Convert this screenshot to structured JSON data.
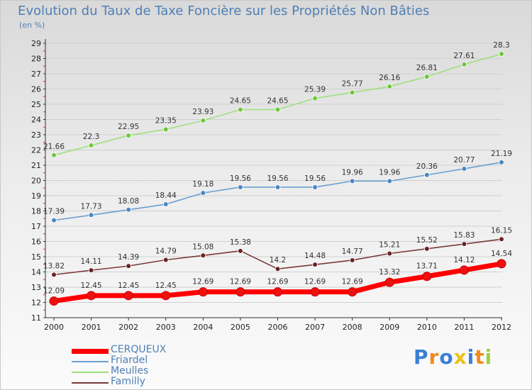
{
  "chart_data": {
    "type": "line",
    "title": "Evolution du Taux de Taxe Foncière sur les Propriétés Non Bâties",
    "subtitle": "(en %)",
    "x": [
      "2000",
      "2001",
      "2002",
      "2003",
      "2004",
      "2005",
      "2006",
      "2007",
      "2008",
      "2009",
      "2010",
      "2011",
      "2012"
    ],
    "ylim": [
      11,
      29
    ],
    "yticks": [
      "11",
      "12",
      "13",
      "14",
      "15",
      "16",
      "17",
      "18",
      "19",
      "20",
      "21",
      "22",
      "23",
      "24",
      "25",
      "26",
      "27",
      "28",
      "29"
    ],
    "grid": "horizontal",
    "legend_position": "bottom-left",
    "series": [
      {
        "name": "CERQUEUX",
        "color": "#ff0000",
        "marker_color": "#ee1111",
        "values": [
          12.09,
          12.45,
          12.45,
          12.45,
          12.69,
          12.69,
          12.69,
          12.69,
          12.69,
          13.32,
          13.71,
          14.12,
          14.54
        ],
        "labels": [
          "12.09",
          "12.45",
          "12.45",
          "12.45",
          "12.69",
          "12.69",
          "12.69",
          "12.69",
          "12.69",
          "13.32",
          "13.71",
          "14.12",
          "14.54"
        ]
      },
      {
        "name": "Friardel",
        "color": "#6b9fd0",
        "marker_color": "#4a86c4",
        "values": [
          17.39,
          17.73,
          18.08,
          18.44,
          19.18,
          19.56,
          19.56,
          19.56,
          19.96,
          19.96,
          20.36,
          20.77,
          21.19
        ],
        "labels": [
          "17.39",
          "17.73",
          "18.08",
          "18.44",
          "19.18",
          "19.56",
          "19.56",
          "19.56",
          "19.96",
          "19.96",
          "20.36",
          "20.77",
          "21.19"
        ]
      },
      {
        "name": "Meulles",
        "color": "#9ee07e",
        "marker_color": "#6cc63a",
        "values": [
          21.66,
          22.3,
          22.95,
          23.35,
          23.93,
          24.65,
          24.65,
          25.39,
          25.77,
          26.16,
          26.81,
          27.61,
          28.3
        ],
        "labels": [
          "21.66",
          "22.3",
          "22.95",
          "23.35",
          "23.93",
          "24.65",
          "24.65",
          "25.39",
          "25.77",
          "26.16",
          "26.81",
          "27.61",
          "28.3"
        ]
      },
      {
        "name": "Familly",
        "color": "#7a3a3a",
        "marker_color": "#6b2222",
        "values": [
          13.82,
          14.11,
          14.39,
          14.79,
          15.08,
          15.38,
          14.2,
          14.48,
          14.77,
          15.21,
          15.52,
          15.83,
          16.15
        ],
        "labels": [
          "13.82",
          "14.11",
          "14.39",
          "14.79",
          "15.08",
          "15.38",
          "14.2",
          "14.48",
          "14.77",
          "15.21",
          "15.52",
          "15.83",
          "16.15"
        ]
      }
    ]
  },
  "logo": {
    "letters": [
      "P",
      "r",
      "o",
      "x",
      "i",
      "t",
      "i"
    ],
    "colors": [
      "#3a7fd5",
      "#f08a1c",
      "#3a7fd5",
      "#e8c21a",
      "#3a7fd5",
      "#f08a1c",
      "#9bd43a"
    ]
  }
}
